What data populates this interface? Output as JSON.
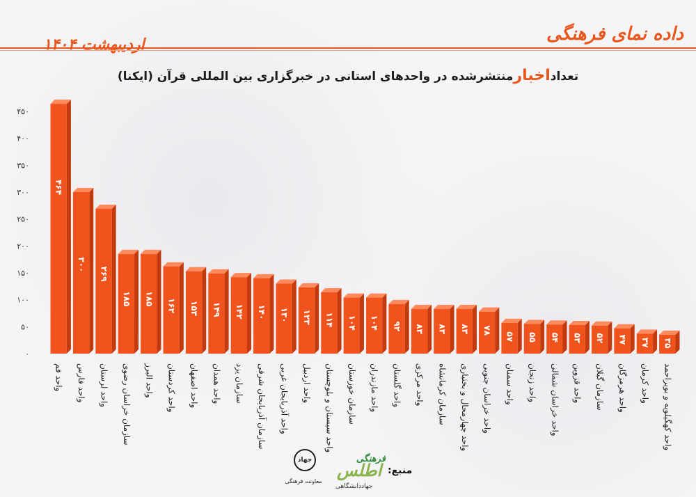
{
  "header": {
    "brand": "داده نمای فرهنگی",
    "date": "اردیبهشت ۱۴۰۴"
  },
  "chart_title": {
    "before": "تعداد",
    "highlight": "اخبار",
    "after": "منتشرشده در واحدهای استانی در خبرگزاری بین المللی قرآن (ایکنا)"
  },
  "footer": {
    "source_label": "منبع:",
    "atlas_top": "فرهنگی",
    "atlas_big": "اطلس",
    "atlas_sub": "جهاددانشگاهی",
    "jehad_logo": "جهاد",
    "jehad_sub": "معاونت فرهنگی"
  },
  "colors": {
    "bar": "#f0531c",
    "bar_side": "#c23a0e",
    "bar_top": "#ff8a5c",
    "accent": "#e8561b"
  },
  "chart_data": {
    "type": "bar",
    "categories": [
      "واحد قم",
      "واحد فارس",
      "واحد لرستان",
      "سازمان خراسان رضوی",
      "واحد البرز",
      "واحد کردستان",
      "واحد اصفهان",
      "واحد همدان",
      "سازمان یزد",
      "سازمان آذربایجان شرقی",
      "واحد آذربایجان غربی",
      "واحد اردبیل",
      "واحد سیستان و بلوچستان",
      "سازمان خوزستان",
      "واحد مازندران",
      "واحد گلستان",
      "واحد مرکزی",
      "سازمان کرمانشاه",
      "واحد چهارمحال و بختیاری",
      "واحد خراسان جنوبی",
      "واحد سمنان",
      "واحد زنجان",
      "واحد خراسان شمالی",
      "واحد قزوین",
      "سازمان گیلان",
      "واحد هرمزگان",
      "واحد کرمان",
      "واحد کهگیلویه و بویراحمد"
    ],
    "values": [
      464,
      300,
      269,
      185,
      185,
      162,
      153,
      149,
      142,
      140,
      130,
      123,
      114,
      104,
      104,
      92,
      83,
      83,
      83,
      78,
      57,
      55,
      54,
      53,
      52,
      47,
      37,
      35
    ],
    "value_labels": [
      "۴۶۴",
      "۳۰۰",
      "۲۶۹",
      "۱۸۵",
      "۱۸۵",
      "۱۶۲",
      "۱۵۳",
      "۱۴۹",
      "۱۴۲",
      "۱۴۰",
      "۱۳۰",
      "۱۲۳",
      "۱۱۴",
      "۱۰۴",
      "۱۰۴",
      "۹۲",
      "۸۳",
      "۸۳",
      "۸۳",
      "۷۸",
      "۵۷",
      "۵۵",
      "۵۴",
      "۵۳",
      "۵۲",
      "۴۷",
      "۳۷",
      "۳۵"
    ],
    "yticks": [
      "۰",
      "۵۰",
      "۱۰۰",
      "۱۵۰",
      "۲۰۰",
      "۲۵۰",
      "۳۰۰",
      "۳۵۰",
      "۴۰۰",
      "۴۵۰"
    ],
    "ylim": [
      0,
      450
    ],
    "grid": false
  }
}
